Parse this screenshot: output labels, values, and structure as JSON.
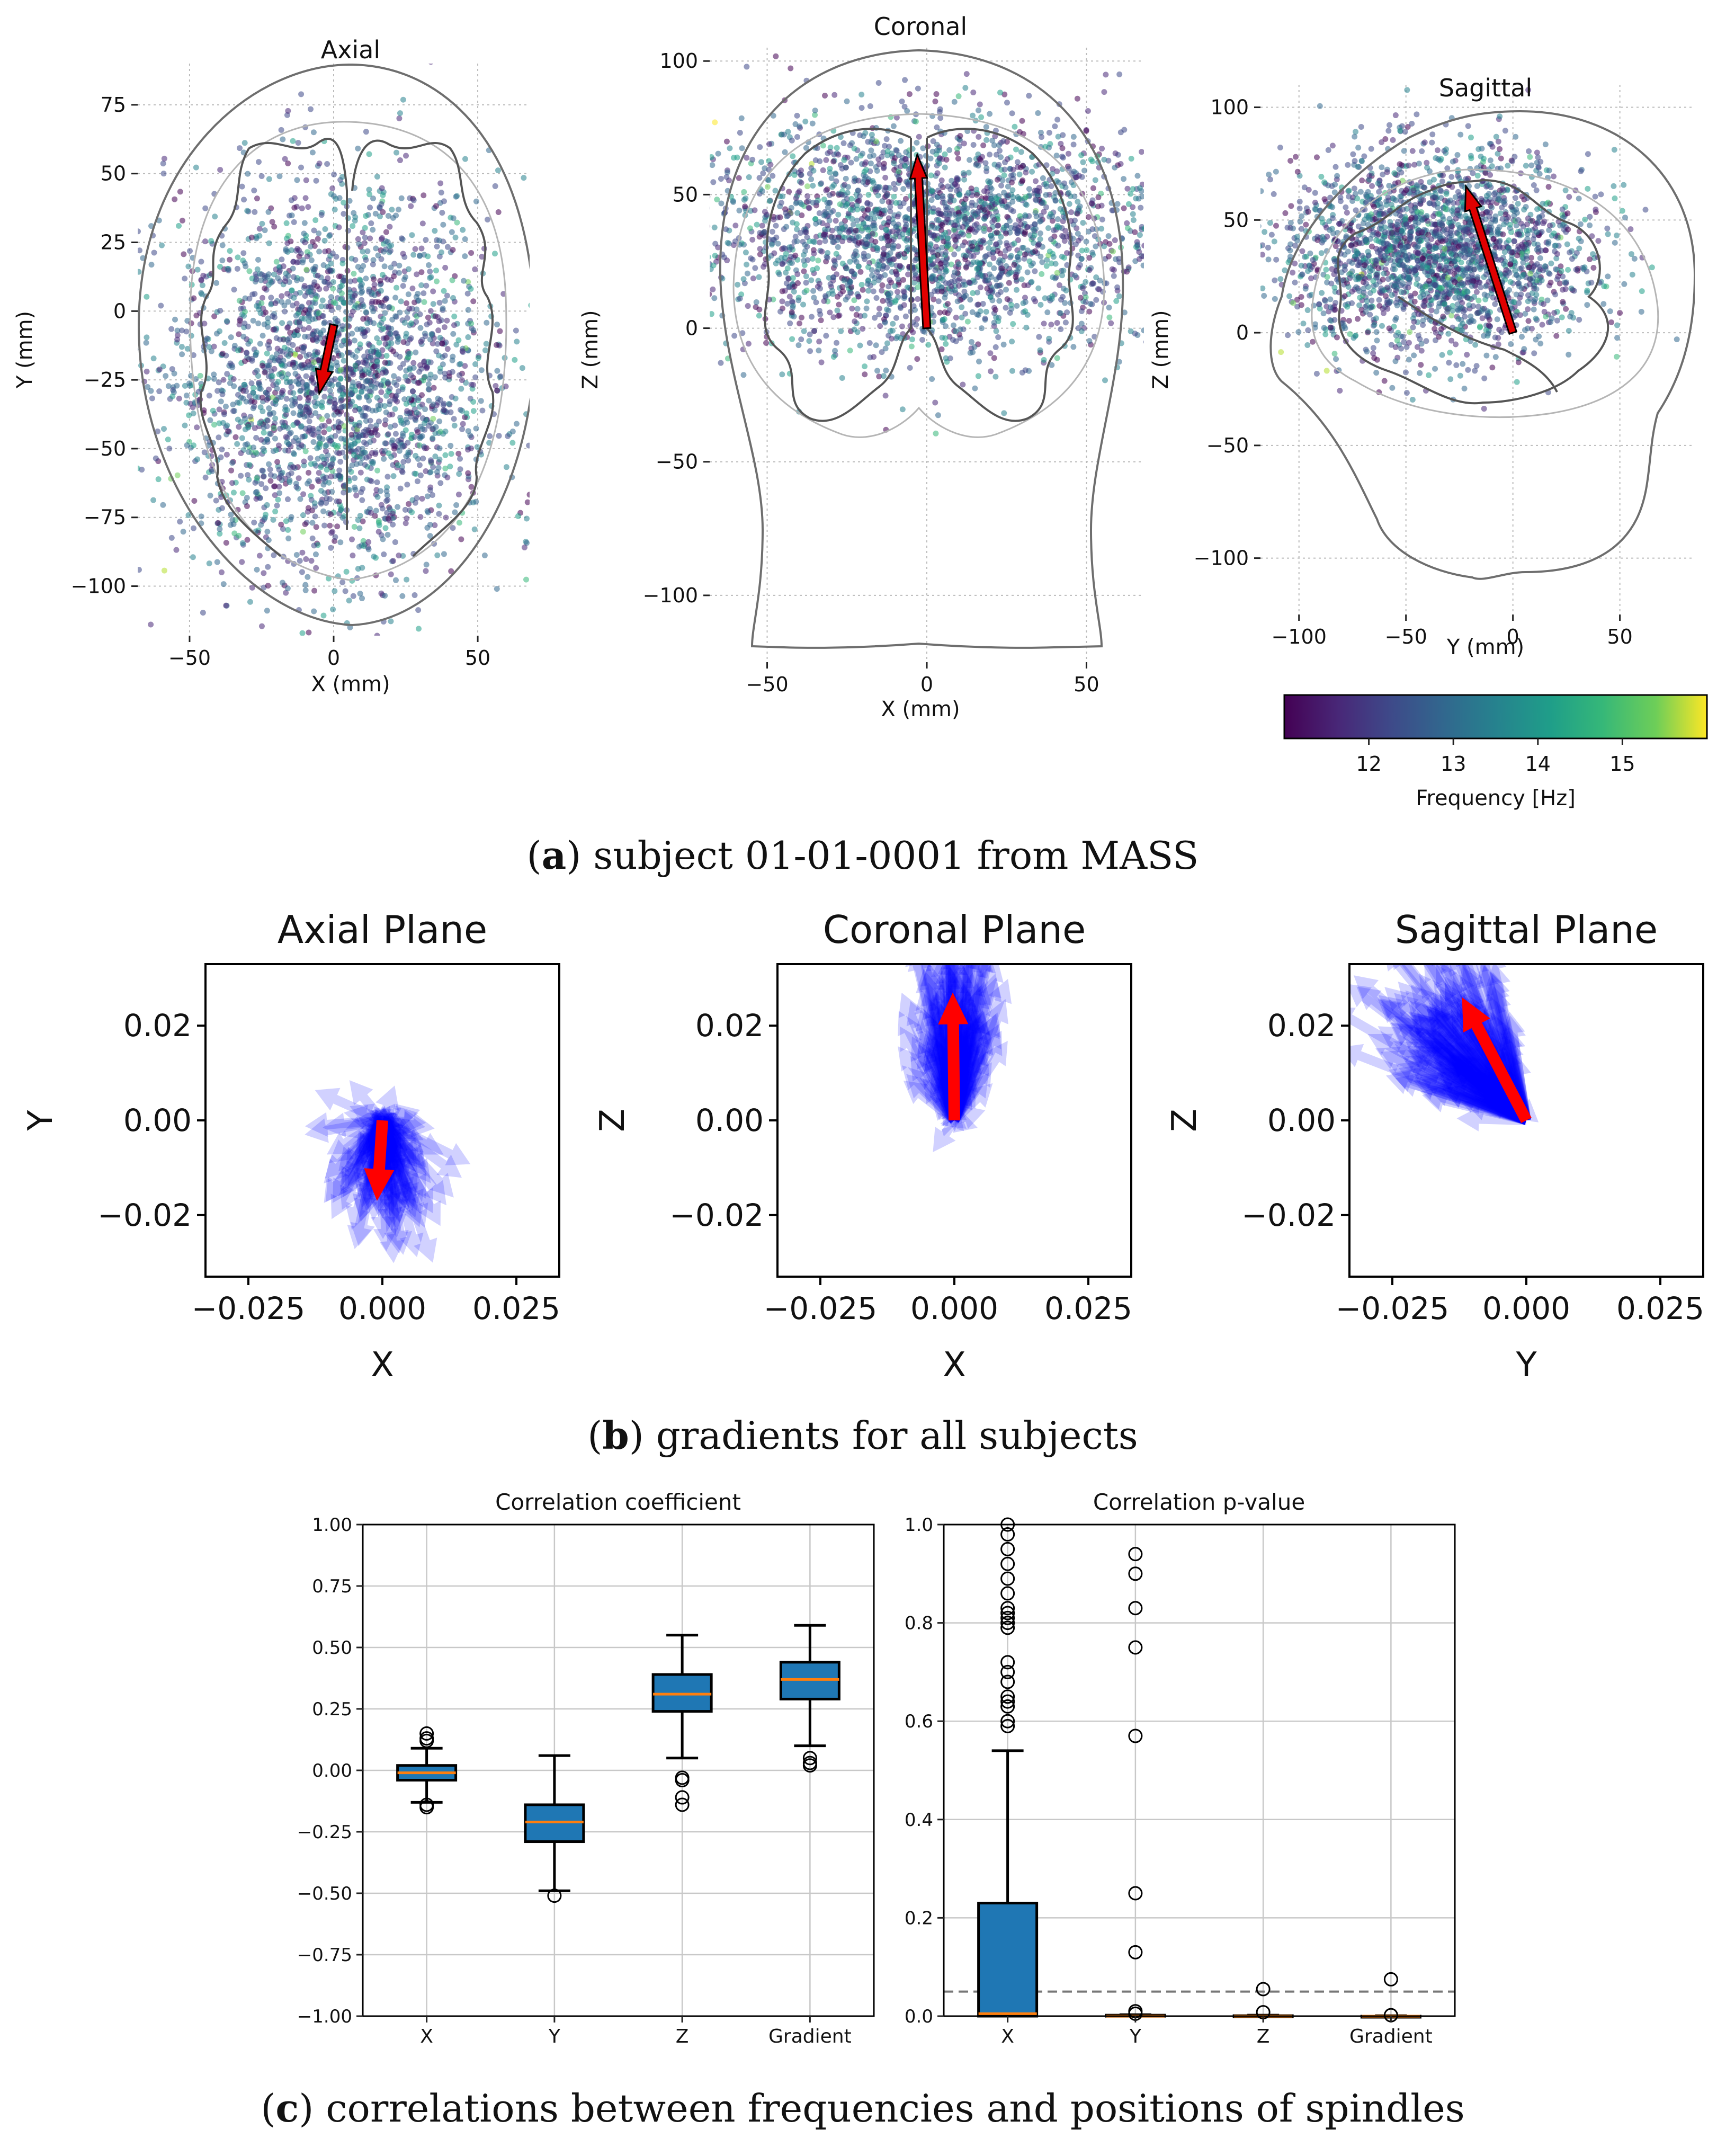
{
  "figure": {
    "captions": [
      {
        "label": "a",
        "text": "subject 01-01-0001 from MASS"
      },
      {
        "label": "b",
        "text": "gradients for all subjects"
      },
      {
        "label": "c",
        "text": "correlations between frequencies and positions of spindles"
      }
    ]
  },
  "chart_data": [
    {
      "id": "a-axial",
      "type": "scatter",
      "title": "Axial",
      "xlabel": "X (mm)",
      "ylabel": "Y (mm)",
      "xlim": [
        -68,
        68
      ],
      "ylim": [
        -118,
        90
      ],
      "xticks": [
        "−50",
        "0",
        "50"
      ],
      "yticks": [
        "75",
        "50",
        "25",
        "0",
        "−25",
        "−50",
        "−75",
        "−100"
      ],
      "gradient": {
        "from": [
          0,
          -5
        ],
        "to": [
          -5,
          -30
        ]
      },
      "cloud": {
        "cx": 0,
        "cy": -25,
        "sx": 28,
        "sy": 35,
        "n": 2600
      }
    },
    {
      "id": "a-coronal",
      "type": "scatter",
      "title": "Coronal",
      "xlabel": "X (mm)",
      "ylabel": "Z (mm)",
      "xlim": [
        -68,
        68
      ],
      "ylim": [
        -125,
        105
      ],
      "xticks": [
        "−50",
        "0",
        "50"
      ],
      "yticks": [
        "100",
        "50",
        "0",
        "−50",
        "−100"
      ],
      "gradient": {
        "from": [
          0,
          0
        ],
        "to": [
          -3,
          65
        ]
      },
      "cloud": {
        "cx": 0,
        "cy": 35,
        "sx": 38,
        "sy": 22,
        "n": 2600
      }
    },
    {
      "id": "a-sagittal",
      "type": "scatter",
      "title": "Sagittal",
      "xlabel": "Y (mm)",
      "ylabel": "Z (mm)",
      "xlim": [
        -118,
        85
      ],
      "ylim": [
        -125,
        110
      ],
      "xticks": [
        "−100",
        "−50",
        "0",
        "50"
      ],
      "yticks": [
        "100",
        "50",
        "0",
        "−50",
        "−100"
      ],
      "gradient": {
        "from": [
          0,
          0
        ],
        "to": [
          -22,
          65
        ]
      },
      "cloud": {
        "cx": -35,
        "cy": 35,
        "sx": 35,
        "sy": 22,
        "n": 2300
      }
    },
    {
      "id": "a-colorbar",
      "type": "colorbar",
      "label": "Frequency [Hz]",
      "range": [
        11,
        16
      ],
      "ticks": [
        "12",
        "13",
        "14",
        "15"
      ]
    },
    {
      "id": "b-axial",
      "type": "quiver",
      "title": "Axial Plane",
      "xlabel": "X",
      "ylabel": "Y",
      "xlim": [
        -0.033,
        0.033
      ],
      "ylim": [
        -0.033,
        0.033
      ],
      "xticks": [
        "−0.025",
        "0.000",
        "0.025"
      ],
      "yticks": [
        "0.02",
        "0.00",
        "−0.02"
      ],
      "mean": [
        -0.001,
        -0.017
      ],
      "spread": {
        "mx": 0,
        "my": -0.012,
        "sx": 0.006,
        "sy": 0.008
      }
    },
    {
      "id": "b-coronal",
      "type": "quiver",
      "title": "Coronal Plane",
      "xlabel": "X",
      "ylabel": "Z",
      "xlim": [
        -0.033,
        0.033
      ],
      "ylim": [
        -0.033,
        0.033
      ],
      "xticks": [
        "−0.025",
        "0.000",
        "0.025"
      ],
      "yticks": [
        "0.02",
        "0.00",
        "−0.02"
      ],
      "mean": [
        -0.0003,
        0.027
      ],
      "spread": {
        "mx": 0,
        "my": 0.024,
        "sx": 0.0045,
        "sy": 0.012
      }
    },
    {
      "id": "b-sagittal",
      "type": "quiver",
      "title": "Sagittal Plane",
      "xlabel": "Y",
      "ylabel": "Z",
      "xlim": [
        -0.033,
        0.033
      ],
      "ylim": [
        -0.033,
        0.033
      ],
      "xticks": [
        "−0.025",
        "0.000",
        "0.025"
      ],
      "yticks": [
        "0.02",
        "0.00",
        "−0.02"
      ],
      "mean": [
        -0.012,
        0.026
      ],
      "spread": {
        "mx": -0.016,
        "my": 0.022,
        "sx": 0.007,
        "sy": 0.01
      }
    },
    {
      "id": "c-coef",
      "type": "box",
      "title": "Correlation coefficient",
      "categories": [
        "X",
        "Y",
        "Z",
        "Gradient"
      ],
      "ylim": [
        -1.0,
        1.0
      ],
      "yticks": [
        "1.00",
        "0.75",
        "0.50",
        "0.25",
        "0.00",
        "−0.25",
        "−0.50",
        "−0.75",
        "−1.00"
      ],
      "ytick_values": [
        1.0,
        0.75,
        0.5,
        0.25,
        0.0,
        -0.25,
        -0.5,
        -0.75,
        -1.0
      ],
      "boxes": [
        {
          "q1": -0.04,
          "median": -0.01,
          "q3": 0.02,
          "whislo": -0.13,
          "whishi": 0.09,
          "fliers": [
            0.15,
            0.13,
            0.12,
            -0.15,
            -0.14
          ]
        },
        {
          "q1": -0.29,
          "median": -0.21,
          "q3": -0.14,
          "whislo": -0.49,
          "whishi": 0.06,
          "fliers": [
            -0.51
          ]
        },
        {
          "q1": 0.24,
          "median": 0.31,
          "q3": 0.39,
          "whislo": 0.05,
          "whishi": 0.55,
          "fliers": [
            -0.03,
            -0.04,
            -0.11,
            -0.14
          ]
        },
        {
          "q1": 0.29,
          "median": 0.37,
          "q3": 0.44,
          "whislo": 0.1,
          "whishi": 0.59,
          "fliers": [
            0.05,
            0.03,
            0.02
          ]
        }
      ]
    },
    {
      "id": "c-pval",
      "type": "box",
      "title": "Correlation p-value",
      "categories": [
        "X",
        "Y",
        "Z",
        "Gradient"
      ],
      "ylim": [
        0.0,
        1.0
      ],
      "yticks": [
        "1.0",
        "0.8",
        "0.6",
        "0.4",
        "0.2",
        "0.0"
      ],
      "ytick_values": [
        1.0,
        0.8,
        0.6,
        0.4,
        0.2,
        0.0
      ],
      "threshold": 0.05,
      "boxes": [
        {
          "q1": 0.0,
          "median": 0.005,
          "q3": 0.23,
          "whislo": 0.0,
          "whishi": 0.54,
          "fliers": [
            1.0,
            0.98,
            0.95,
            0.92,
            0.89,
            0.86,
            0.83,
            0.82,
            0.81,
            0.8,
            0.79,
            0.72,
            0.7,
            0.68,
            0.65,
            0.64,
            0.63,
            0.6,
            0.59
          ]
        },
        {
          "q1": 0.0,
          "median": 0.0,
          "q3": 0.002,
          "whislo": 0.0,
          "whishi": 0.003,
          "fliers": [
            0.94,
            0.9,
            0.83,
            0.75,
            0.57,
            0.25,
            0.13,
            0.01,
            0.005
          ]
        },
        {
          "q1": 0.0,
          "median": 0.0,
          "q3": 0.001,
          "whislo": 0.0,
          "whishi": 0.002,
          "fliers": [
            0.055,
            0.008
          ]
        },
        {
          "q1": 0.0,
          "median": 0.0,
          "q3": 0.0,
          "whislo": 0.0,
          "whishi": 0.001,
          "fliers": [
            0.075,
            0.002
          ]
        }
      ]
    }
  ]
}
